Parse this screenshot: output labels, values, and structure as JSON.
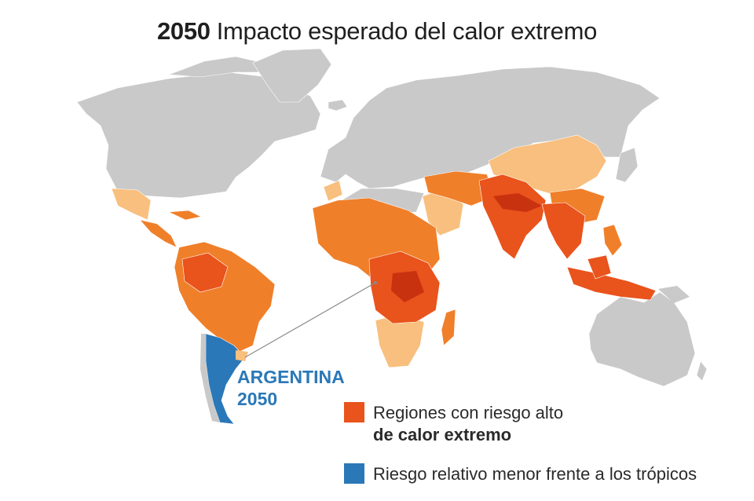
{
  "title": {
    "year": "2050",
    "text": "Impacto esperado del calor extremo"
  },
  "colors": {
    "background": "#ffffff",
    "land_neutral": "#c9c9c9",
    "high_risk": "#e9531c",
    "high_risk_dark": "#c8320f",
    "medium_risk": "#f07f2a",
    "light_risk": "#f8bf7e",
    "lower_risk_blue": "#2a78b8",
    "connector": "#8a8a8a"
  },
  "highlight": {
    "name_line1": "ARGENTINA",
    "name_line2": "2050"
  },
  "legend": {
    "items": [
      {
        "line1": "Regiones con riesgo alto",
        "line2": "de calor extremo",
        "color": "#e9531c"
      },
      {
        "line1": "Riesgo relativo menor frente a los trópicos",
        "color": "#2a78b8"
      }
    ]
  }
}
